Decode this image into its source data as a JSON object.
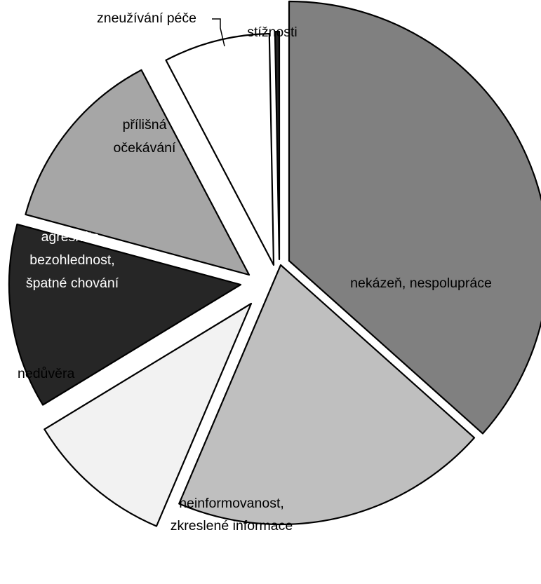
{
  "chart_data": {
    "type": "pie",
    "title": "",
    "start_angle_deg": 0,
    "direction": "clockwise",
    "exploded": true,
    "slices": [
      {
        "label": "nekázeň, nespolupráce",
        "lines": [
          "nekázeň, nespolupráce"
        ],
        "value": 36.6,
        "color": "#808080"
      },
      {
        "label": "neinformovanost, zkreslené informace",
        "lines": [
          "neinformovanost,",
          "zkreslené informace"
        ],
        "value": 19.8,
        "color": "#bfbfbf"
      },
      {
        "label": "nedůvěra",
        "lines": [
          "nedůvěra"
        ],
        "value": 9.9,
        "color": "#f2f2f2"
      },
      {
        "label": "agresivita, bezohlednost, špatné chování",
        "lines": [
          "agresivita,",
          "bezohlednost,",
          "špatné chování"
        ],
        "value": 12.9,
        "color": "#262626"
      },
      {
        "label": "přílišná očekávání",
        "lines": [
          "přílišná",
          "očekávání"
        ],
        "value": 13.1,
        "color": "#a6a6a6"
      },
      {
        "label": "zneužívání péče",
        "lines": [
          "zneužívání péče"
        ],
        "value": 7.4,
        "color": "#ffffff"
      },
      {
        "label": "stížnosti",
        "lines": [
          "stížnosti"
        ],
        "value": 0.3,
        "color": "#262626"
      }
    ]
  }
}
